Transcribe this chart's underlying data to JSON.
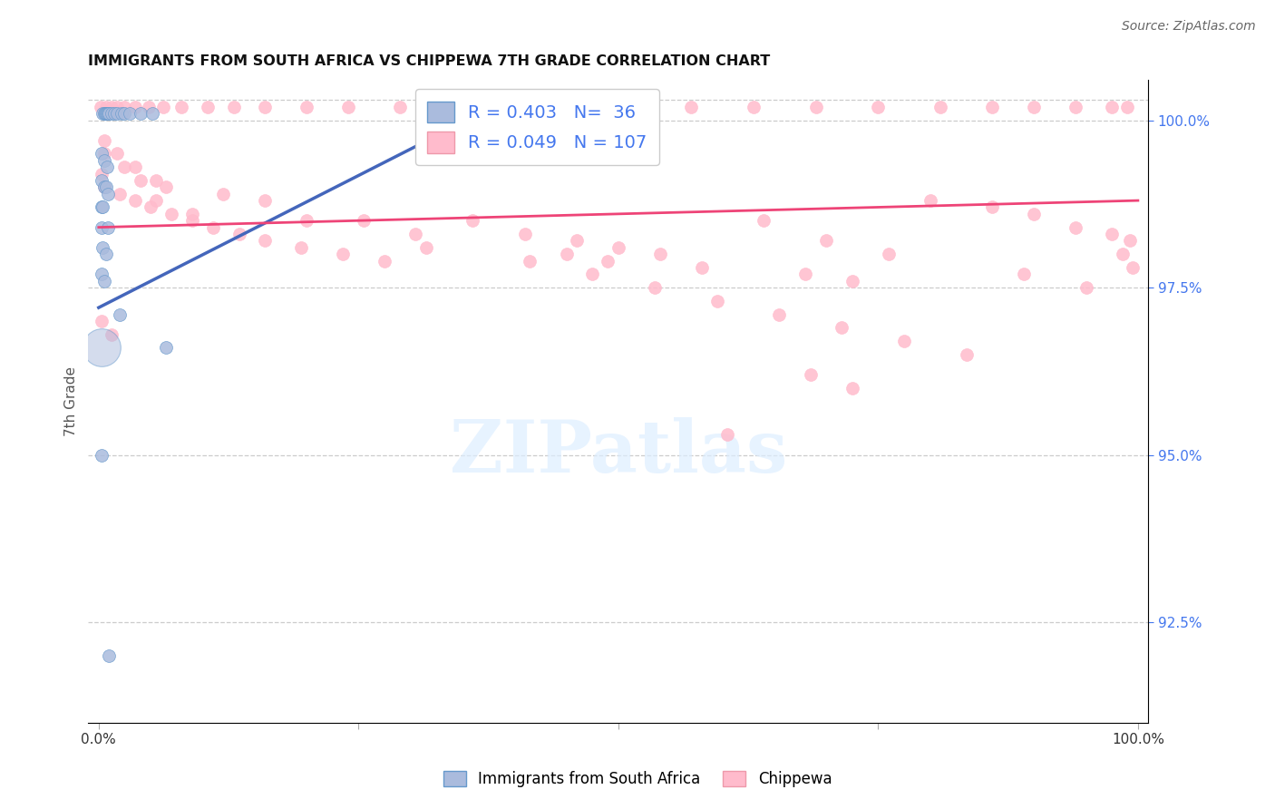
{
  "title": "IMMIGRANTS FROM SOUTH AFRICA VS CHIPPEWA 7TH GRADE CORRELATION CHART",
  "source": "Source: ZipAtlas.com",
  "ylabel": "7th Grade",
  "legend_blue_r": "0.403",
  "legend_blue_n": "36",
  "legend_pink_r": "0.049",
  "legend_pink_n": "107",
  "blue_color": "#aabbdd",
  "blue_edge_color": "#6699cc",
  "pink_color": "#ffbbcc",
  "pink_edge_color": "#ee99aa",
  "blue_line_color": "#4466bb",
  "pink_line_color": "#ee4477",
  "bg_color": "#ffffff",
  "grid_color": "#cccccc",
  "right_tick_color": "#4477ee",
  "title_color": "#111111",
  "source_color": "#666666",
  "watermark_color": "#ddeeff",
  "x_min": 0.0,
  "x_max": 1.0,
  "y_min": 0.91,
  "y_max": 1.006,
  "right_yticks": [
    0.925,
    0.95,
    0.975,
    1.0
  ],
  "right_yticklabels": [
    "92.5%",
    "95.0%",
    "97.5%",
    "100.0%"
  ],
  "blue_line": [
    [
      0.0,
      0.972
    ],
    [
      0.38,
      1.002
    ]
  ],
  "pink_line": [
    [
      0.0,
      0.984
    ],
    [
      1.0,
      0.988
    ]
  ],
  "blue_large_point": [
    0.003,
    0.966
  ],
  "blue_points": [
    [
      0.004,
      1.001
    ],
    [
      0.005,
      1.001
    ],
    [
      0.006,
      1.001
    ],
    [
      0.007,
      1.001
    ],
    [
      0.008,
      1.001
    ],
    [
      0.009,
      1.001
    ],
    [
      0.01,
      1.001
    ],
    [
      0.012,
      1.001
    ],
    [
      0.015,
      1.001
    ],
    [
      0.018,
      1.001
    ],
    [
      0.022,
      1.001
    ],
    [
      0.025,
      1.001
    ],
    [
      0.03,
      1.001
    ],
    [
      0.04,
      1.001
    ],
    [
      0.052,
      1.001
    ],
    [
      0.003,
      0.995
    ],
    [
      0.005,
      0.994
    ],
    [
      0.008,
      0.993
    ],
    [
      0.003,
      0.991
    ],
    [
      0.005,
      0.99
    ],
    [
      0.007,
      0.99
    ],
    [
      0.009,
      0.989
    ],
    [
      0.003,
      0.987
    ],
    [
      0.004,
      0.987
    ],
    [
      0.003,
      0.984
    ],
    [
      0.009,
      0.984
    ],
    [
      0.004,
      0.981
    ],
    [
      0.007,
      0.98
    ],
    [
      0.003,
      0.977
    ],
    [
      0.005,
      0.976
    ],
    [
      0.02,
      0.971
    ],
    [
      0.065,
      0.966
    ],
    [
      0.003,
      0.95
    ],
    [
      0.01,
      0.92
    ]
  ],
  "pink_points": [
    [
      0.002,
      1.002
    ],
    [
      0.007,
      1.002
    ],
    [
      0.012,
      1.002
    ],
    [
      0.018,
      1.002
    ],
    [
      0.025,
      1.002
    ],
    [
      0.035,
      1.002
    ],
    [
      0.048,
      1.002
    ],
    [
      0.062,
      1.002
    ],
    [
      0.08,
      1.002
    ],
    [
      0.105,
      1.002
    ],
    [
      0.13,
      1.002
    ],
    [
      0.16,
      1.002
    ],
    [
      0.2,
      1.002
    ],
    [
      0.24,
      1.002
    ],
    [
      0.29,
      1.002
    ],
    [
      0.34,
      1.002
    ],
    [
      0.39,
      1.002
    ],
    [
      0.45,
      1.002
    ],
    [
      0.51,
      1.002
    ],
    [
      0.57,
      1.002
    ],
    [
      0.63,
      1.002
    ],
    [
      0.69,
      1.002
    ],
    [
      0.75,
      1.002
    ],
    [
      0.81,
      1.002
    ],
    [
      0.86,
      1.002
    ],
    [
      0.9,
      1.002
    ],
    [
      0.94,
      1.002
    ],
    [
      0.975,
      1.002
    ],
    [
      0.99,
      1.002
    ],
    [
      0.005,
      0.997
    ],
    [
      0.018,
      0.995
    ],
    [
      0.035,
      0.993
    ],
    [
      0.055,
      0.991
    ],
    [
      0.005,
      0.99
    ],
    [
      0.02,
      0.989
    ],
    [
      0.035,
      0.988
    ],
    [
      0.05,
      0.987
    ],
    [
      0.07,
      0.986
    ],
    [
      0.09,
      0.985
    ],
    [
      0.11,
      0.984
    ],
    [
      0.135,
      0.983
    ],
    [
      0.16,
      0.982
    ],
    [
      0.195,
      0.981
    ],
    [
      0.235,
      0.98
    ],
    [
      0.275,
      0.979
    ],
    [
      0.055,
      0.988
    ],
    [
      0.09,
      0.986
    ],
    [
      0.36,
      0.985
    ],
    [
      0.41,
      0.983
    ],
    [
      0.46,
      0.982
    ],
    [
      0.5,
      0.981
    ],
    [
      0.54,
      0.98
    ],
    [
      0.58,
      0.978
    ],
    [
      0.005,
      0.995
    ],
    [
      0.025,
      0.993
    ],
    [
      0.04,
      0.991
    ],
    [
      0.065,
      0.99
    ],
    [
      0.12,
      0.989
    ],
    [
      0.16,
      0.988
    ],
    [
      0.255,
      0.985
    ],
    [
      0.305,
      0.983
    ],
    [
      0.45,
      0.98
    ],
    [
      0.49,
      0.979
    ],
    [
      0.68,
      0.977
    ],
    [
      0.725,
      0.976
    ],
    [
      0.8,
      0.988
    ],
    [
      0.86,
      0.987
    ],
    [
      0.9,
      0.986
    ],
    [
      0.94,
      0.984
    ],
    [
      0.975,
      0.983
    ],
    [
      0.992,
      0.982
    ],
    [
      0.985,
      0.98
    ],
    [
      0.995,
      0.978
    ],
    [
      0.2,
      0.985
    ],
    [
      0.315,
      0.981
    ],
    [
      0.415,
      0.979
    ],
    [
      0.475,
      0.977
    ],
    [
      0.535,
      0.975
    ],
    [
      0.595,
      0.973
    ],
    [
      0.655,
      0.971
    ],
    [
      0.715,
      0.969
    ],
    [
      0.775,
      0.967
    ],
    [
      0.835,
      0.965
    ],
    [
      0.89,
      0.977
    ],
    [
      0.95,
      0.975
    ],
    [
      0.64,
      0.985
    ],
    [
      0.7,
      0.982
    ],
    [
      0.76,
      0.98
    ],
    [
      0.685,
      0.962
    ],
    [
      0.725,
      0.96
    ],
    [
      0.605,
      0.953
    ],
    [
      0.003,
      0.97
    ],
    [
      0.012,
      0.968
    ],
    [
      0.003,
      0.992
    ]
  ]
}
